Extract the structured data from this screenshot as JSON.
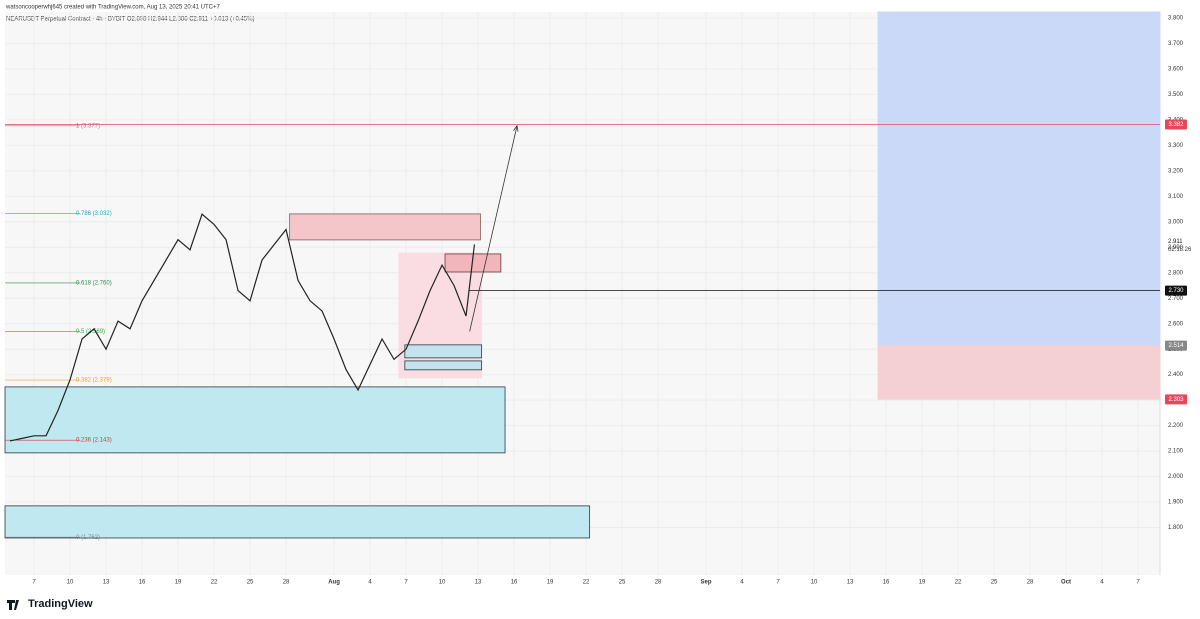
{
  "header": {
    "author_line": "watsoncooperwhj645 created with TradingView.com, Aug 13, 2025 20:41 UTC+7",
    "symbol_line": "NEARUSDT Perpetual Contract · 4h · BYBIT  O2.898 H2.944 L2.886 C2.911 +0.013 (+0.45%)"
  },
  "footer": {
    "brand": "TradingView"
  },
  "chart_data": {
    "type": "line",
    "x": [
      5,
      6,
      7,
      8,
      9,
      10,
      11,
      12,
      13,
      14,
      15,
      16,
      17,
      18,
      19,
      20,
      21,
      22,
      23,
      24,
      25,
      26,
      27,
      28,
      29,
      30,
      31,
      32,
      33,
      34,
      35,
      36,
      37,
      38,
      39,
      40,
      41,
      42,
      43,
      43.7
    ],
    "series": [
      {
        "name": "NEARUSDT",
        "color": "#222222",
        "values": [
          2.14,
          2.15,
          2.16,
          2.16,
          2.26,
          2.38,
          2.54,
          2.58,
          2.5,
          2.61,
          2.58,
          2.69,
          2.77,
          2.85,
          2.93,
          2.89,
          3.03,
          2.99,
          2.93,
          2.73,
          2.69,
          2.85,
          2.91,
          2.97,
          2.77,
          2.69,
          2.65,
          2.54,
          2.42,
          2.34,
          2.44,
          2.54,
          2.46,
          2.5,
          2.61,
          2.73,
          2.83,
          2.75,
          2.63,
          2.911
        ]
      }
    ],
    "xlim": [
      4.58,
      100.83
    ],
    "ylim": [
      1.7,
      3.8
    ],
    "xticks": [
      {
        "value": 7,
        "label": "7"
      },
      {
        "value": 10,
        "label": "10"
      },
      {
        "value": 13,
        "label": "13"
      },
      {
        "value": 16,
        "label": "16"
      },
      {
        "value": 19,
        "label": "19"
      },
      {
        "value": 22,
        "label": "22"
      },
      {
        "value": 25,
        "label": "25"
      },
      {
        "value": 28,
        "label": "28"
      },
      {
        "value": 32,
        "label": "Aug"
      },
      {
        "value": 35,
        "label": "4"
      },
      {
        "value": 38,
        "label": "7"
      },
      {
        "value": 41,
        "label": "10"
      },
      {
        "value": 44,
        "label": "13"
      },
      {
        "value": 47,
        "label": "16"
      },
      {
        "value": 50,
        "label": "19"
      },
      {
        "value": 53,
        "label": "22"
      },
      {
        "value": 56,
        "label": "25"
      },
      {
        "value": 59,
        "label": "28"
      },
      {
        "value": 63,
        "label": "Sep"
      },
      {
        "value": 66,
        "label": "4"
      },
      {
        "value": 69,
        "label": "7"
      },
      {
        "value": 72,
        "label": "10"
      },
      {
        "value": 75,
        "label": "13"
      },
      {
        "value": 78,
        "label": "16"
      },
      {
        "value": 81,
        "label": "19"
      },
      {
        "value": 84,
        "label": "22"
      },
      {
        "value": 87,
        "label": "25"
      },
      {
        "value": 90,
        "label": "28"
      },
      {
        "value": 93,
        "label": "Oct"
      },
      {
        "value": 96,
        "label": "4"
      },
      {
        "value": 99,
        "label": "7"
      }
    ],
    "yticks": [
      {
        "value": 1.8,
        "label": "1.800"
      },
      {
        "value": 1.9,
        "label": "1.900"
      },
      {
        "value": 2.0,
        "label": "2.000"
      },
      {
        "value": 2.1,
        "label": "2.100"
      },
      {
        "value": 2.2,
        "label": "2.200"
      },
      {
        "value": 2.3,
        "label": "2.300"
      },
      {
        "value": 2.4,
        "label": "2.400"
      },
      {
        "value": 2.5,
        "label": "2.500"
      },
      {
        "value": 2.6,
        "label": "2.600"
      },
      {
        "value": 2.7,
        "label": "2.700"
      },
      {
        "value": 2.8,
        "label": "2.800"
      },
      {
        "value": 2.9,
        "label": "2.900"
      },
      {
        "value": 3.0,
        "label": "3.000"
      },
      {
        "value": 3.1,
        "label": "3.100"
      },
      {
        "value": 3.2,
        "label": "3.200"
      },
      {
        "value": 3.3,
        "label": "3.300"
      },
      {
        "value": 3.4,
        "label": "3.400"
      },
      {
        "value": 3.5,
        "label": "3.500"
      },
      {
        "value": 3.6,
        "label": "3.600"
      },
      {
        "value": 3.7,
        "label": "3.700"
      },
      {
        "value": 3.8,
        "label": "3.800"
      }
    ],
    "grid": true,
    "zones": [
      {
        "x": [
          4.58,
          46.25
        ],
        "y": [
          2.093,
          2.352
        ],
        "color": "#bfe8f0",
        "stroke": "#2a3a40"
      },
      {
        "x": [
          4.58,
          53.3
        ],
        "y": [
          1.759,
          1.885
        ],
        "color": "#bfe8f0",
        "stroke": "#2a3a40"
      },
      {
        "x": [
          28.3,
          44.2
        ],
        "y": [
          2.929,
          3.031
        ],
        "color": "#f4c6c9",
        "stroke": "#8a5a5a"
      },
      {
        "x": [
          37.4,
          44.3
        ],
        "y": [
          2.387,
          2.878
        ],
        "color": "#f9dde3",
        "stroke": "#f9dde3"
      },
      {
        "x": [
          41.25,
          45.9
        ],
        "y": [
          2.803,
          2.874
        ],
        "color": "#f2b5bb",
        "stroke": "#6a3a3a"
      },
      {
        "x": [
          37.9,
          44.3
        ],
        "y": [
          2.466,
          2.517
        ],
        "color": "#c5e3ef",
        "stroke": "#2a3a40"
      },
      {
        "x": [
          37.9,
          44.3
        ],
        "y": [
          2.419,
          2.454
        ],
        "color": "#c5e3ef",
        "stroke": "#2a3a40"
      },
      {
        "x": [
          77.33,
          100.83
        ],
        "y": [
          2.514,
          3.824
        ],
        "color": "#c9d9f7",
        "stroke": "#c9d9f7"
      },
      {
        "x": [
          77.33,
          100.83
        ],
        "y": [
          2.303,
          2.514
        ],
        "color": "#f4d0d3",
        "stroke": "#f4d0d3"
      }
    ],
    "fib_levels": [
      {
        "label": "1 (3.377)",
        "price": 3.377,
        "color": "#888888"
      },
      {
        "label": "0.786 (3.032)",
        "price": 3.032,
        "color": "#26a6c8"
      },
      {
        "label": "0.618 (2.760)",
        "price": 2.76,
        "color": "#2e8b57"
      },
      {
        "label": "0.5 (2.569)",
        "price": 2.569,
        "color": "#3aa34a"
      },
      {
        "label": "0.382 (2.379)",
        "price": 2.379,
        "color": "#e8a030"
      },
      {
        "label": "0.236 (2.143)",
        "price": 2.143,
        "color": "#d23a3a"
      },
      {
        "label": "0 (1.762)",
        "price": 1.762,
        "color": "#888888"
      }
    ],
    "price_tags": [
      {
        "label": "3.382",
        "value": 3.382,
        "color": "#e8475a",
        "line_from": 4.58
      },
      {
        "label": "2.730",
        "value": 2.73,
        "color": "#111111",
        "line_from": 43.2
      },
      {
        "label": "2.514",
        "value": 2.514,
        "color": "#888888"
      },
      {
        "label": "2.303",
        "value": 2.303,
        "color": "#e8475a"
      }
    ],
    "last_price": {
      "label": "2.911",
      "value": 2.911,
      "countdown": "02:18:26"
    },
    "arrow": {
      "x": [
        43.3,
        47.25
      ],
      "y": [
        2.57,
        3.377
      ]
    }
  }
}
